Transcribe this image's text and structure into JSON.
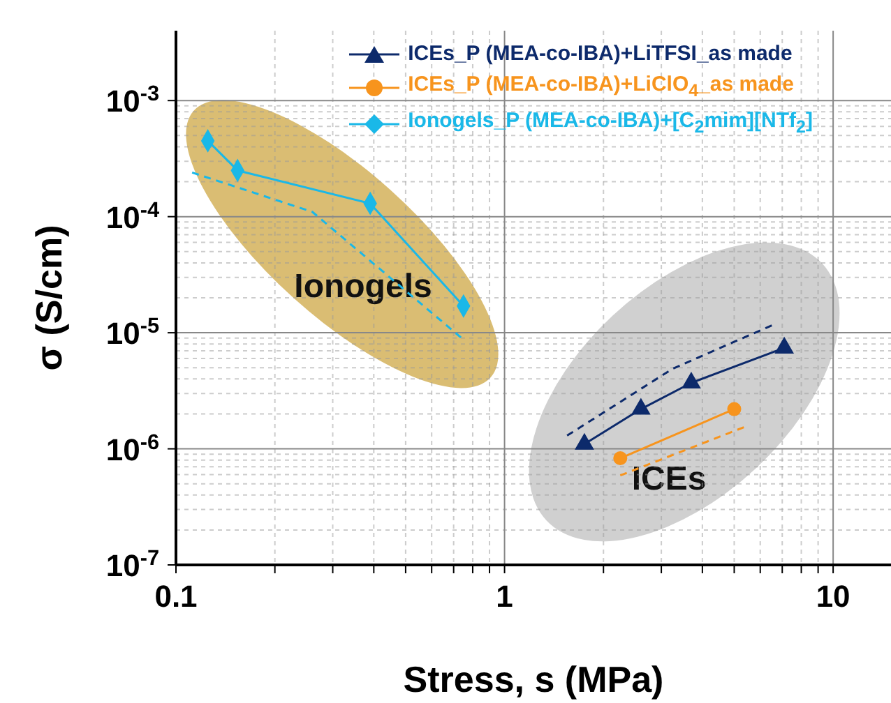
{
  "chart_data": {
    "type": "line",
    "xlabel": "Stress, s (MPa)",
    "ylabel": "σ (S/cm)",
    "log": "xy",
    "grid": true,
    "legend": "top right",
    "xlim": [
      0.1,
      15
    ],
    "xticks": [
      0.1,
      {
        "value": 0.2,
        "label": null
      },
      {
        "value": 0.3,
        "label": null
      },
      {
        "value": 0.4,
        "label": null
      },
      {
        "value": 0.5,
        "label": null
      },
      {
        "value": 0.6,
        "label": null
      },
      {
        "value": 0.7,
        "label": null
      },
      {
        "value": 0.8,
        "label": null
      },
      {
        "value": 0.9,
        "label": null
      },
      1,
      {
        "value": 2,
        "label": null
      },
      {
        "value": 3,
        "label": null
      },
      {
        "value": 4,
        "label": null
      },
      {
        "value": 5,
        "label": null
      },
      {
        "value": 6,
        "label": null
      },
      {
        "value": 7,
        "label": null
      },
      {
        "value": 8,
        "label": null
      },
      {
        "value": 9,
        "label": null
      },
      10
    ],
    "ylim": [
      1e-07,
      0.004
    ],
    "yticks": [
      {
        "value": 1e-07,
        "label": "10$^{-7}$"
      },
      {
        "value": 1e-06,
        "label": "10$^{-6}$"
      },
      {
        "value": 1e-05,
        "label": "10$^{-5}$"
      },
      {
        "value": 0.0001,
        "label": "10$^{-4}$"
      },
      {
        "value": 0.001,
        "label": "10$^{-3}$"
      }
    ],
    "series": [
      {
        "name": "ICEs_P (MEA-co-IBA)+LiTFSI_as made",
        "color": "#0d2a6b",
        "marker": "triangle",
        "line_style": "solid",
        "x": [
          1.75,
          2.6,
          3.7,
          7.1
        ],
        "values": [
          1.1e-06,
          2.2e-06,
          3.7e-06,
          7.4e-06
        ]
      },
      {
        "name": "ICEs_P (MEA-co-IBA)+LiClO$_{4}$_as made",
        "color": "#f7941d",
        "marker": "circle",
        "line_style": "solid",
        "x": [
          2.25,
          5.0
        ],
        "values": [
          8.3e-07,
          2.2e-06
        ]
      },
      {
        "name": "Ionogels_P (MEA-co-IBA)+[C$_{2}$mim][NTf$_{2}$]",
        "color": "#1ab8e8",
        "marker": "diamond",
        "line_style": "solid",
        "x": [
          0.125,
          0.154,
          0.39,
          0.75
        ],
        "values": [
          0.00045,
          0.00025,
          0.00013,
          1.7e-05
        ]
      },
      {
        "color": "#1ab8e8",
        "marker": "none",
        "line_style": "dashed",
        "x": [
          0.112,
          0.26,
          0.74
        ],
        "values": [
          0.00024,
          0.00011,
          9e-06
        ]
      },
      {
        "color": "#0d2a6b",
        "marker": "none",
        "line_style": "dashed",
        "x": [
          1.55,
          3.25,
          6.7
        ],
        "values": [
          1.3e-06,
          4.9e-06,
          1.2e-05
        ]
      },
      {
        "color": "#f7941d",
        "marker": "none",
        "line_style": "dashed",
        "x": [
          2.25,
          5.4
        ],
        "values": [
          5.9e-07,
          1.55e-06
        ]
      }
    ],
    "annotations": [
      "Ionogels",
      "ICEs"
    ]
  }
}
